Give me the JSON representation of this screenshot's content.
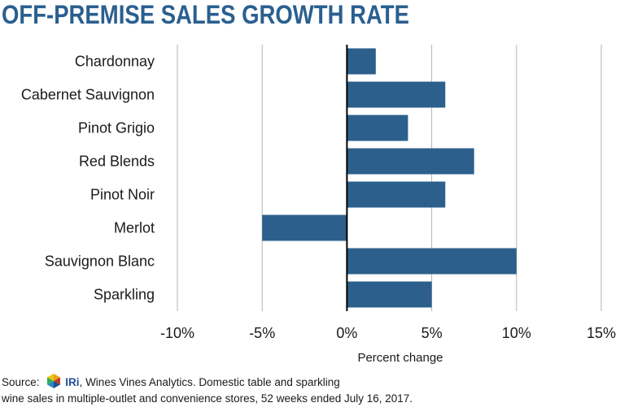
{
  "chart_data": {
    "type": "bar",
    "orientation": "horizontal",
    "title": "OFF-PREMISE SALES GROWTH RATE",
    "xlabel": "Percent change",
    "ylabel": "",
    "categories": [
      "Chardonnay",
      "Cabernet Sauvignon",
      "Pinot Grigio",
      "Red Blends",
      "Pinot Noir",
      "Merlot",
      "Sauvignon Blanc",
      "Sparkling"
    ],
    "values": [
      1.7,
      5.8,
      3.6,
      7.5,
      5.8,
      -5.0,
      10.0,
      5.0
    ],
    "xlim": [
      -10,
      15
    ],
    "xticks": [
      -10,
      -5,
      0,
      5,
      10,
      15
    ],
    "xtick_labels": [
      "-10%",
      "-5%",
      "0%",
      "5%",
      "10%",
      "15%"
    ],
    "grid": true,
    "bar_color": "#2c5f8c"
  },
  "source": {
    "prefix": "Source:",
    "logo_text": "IRi",
    "line1_rest": ", Wines Vines Analytics. Domestic table and sparkling",
    "line2": "wine sales in multiple-outlet and convenience stores, 52 weeks ended July 16, 2017."
  },
  "colors": {
    "title": "#2a5f8f",
    "gridline": "#b5b5b5",
    "zero_line": "#000000"
  }
}
